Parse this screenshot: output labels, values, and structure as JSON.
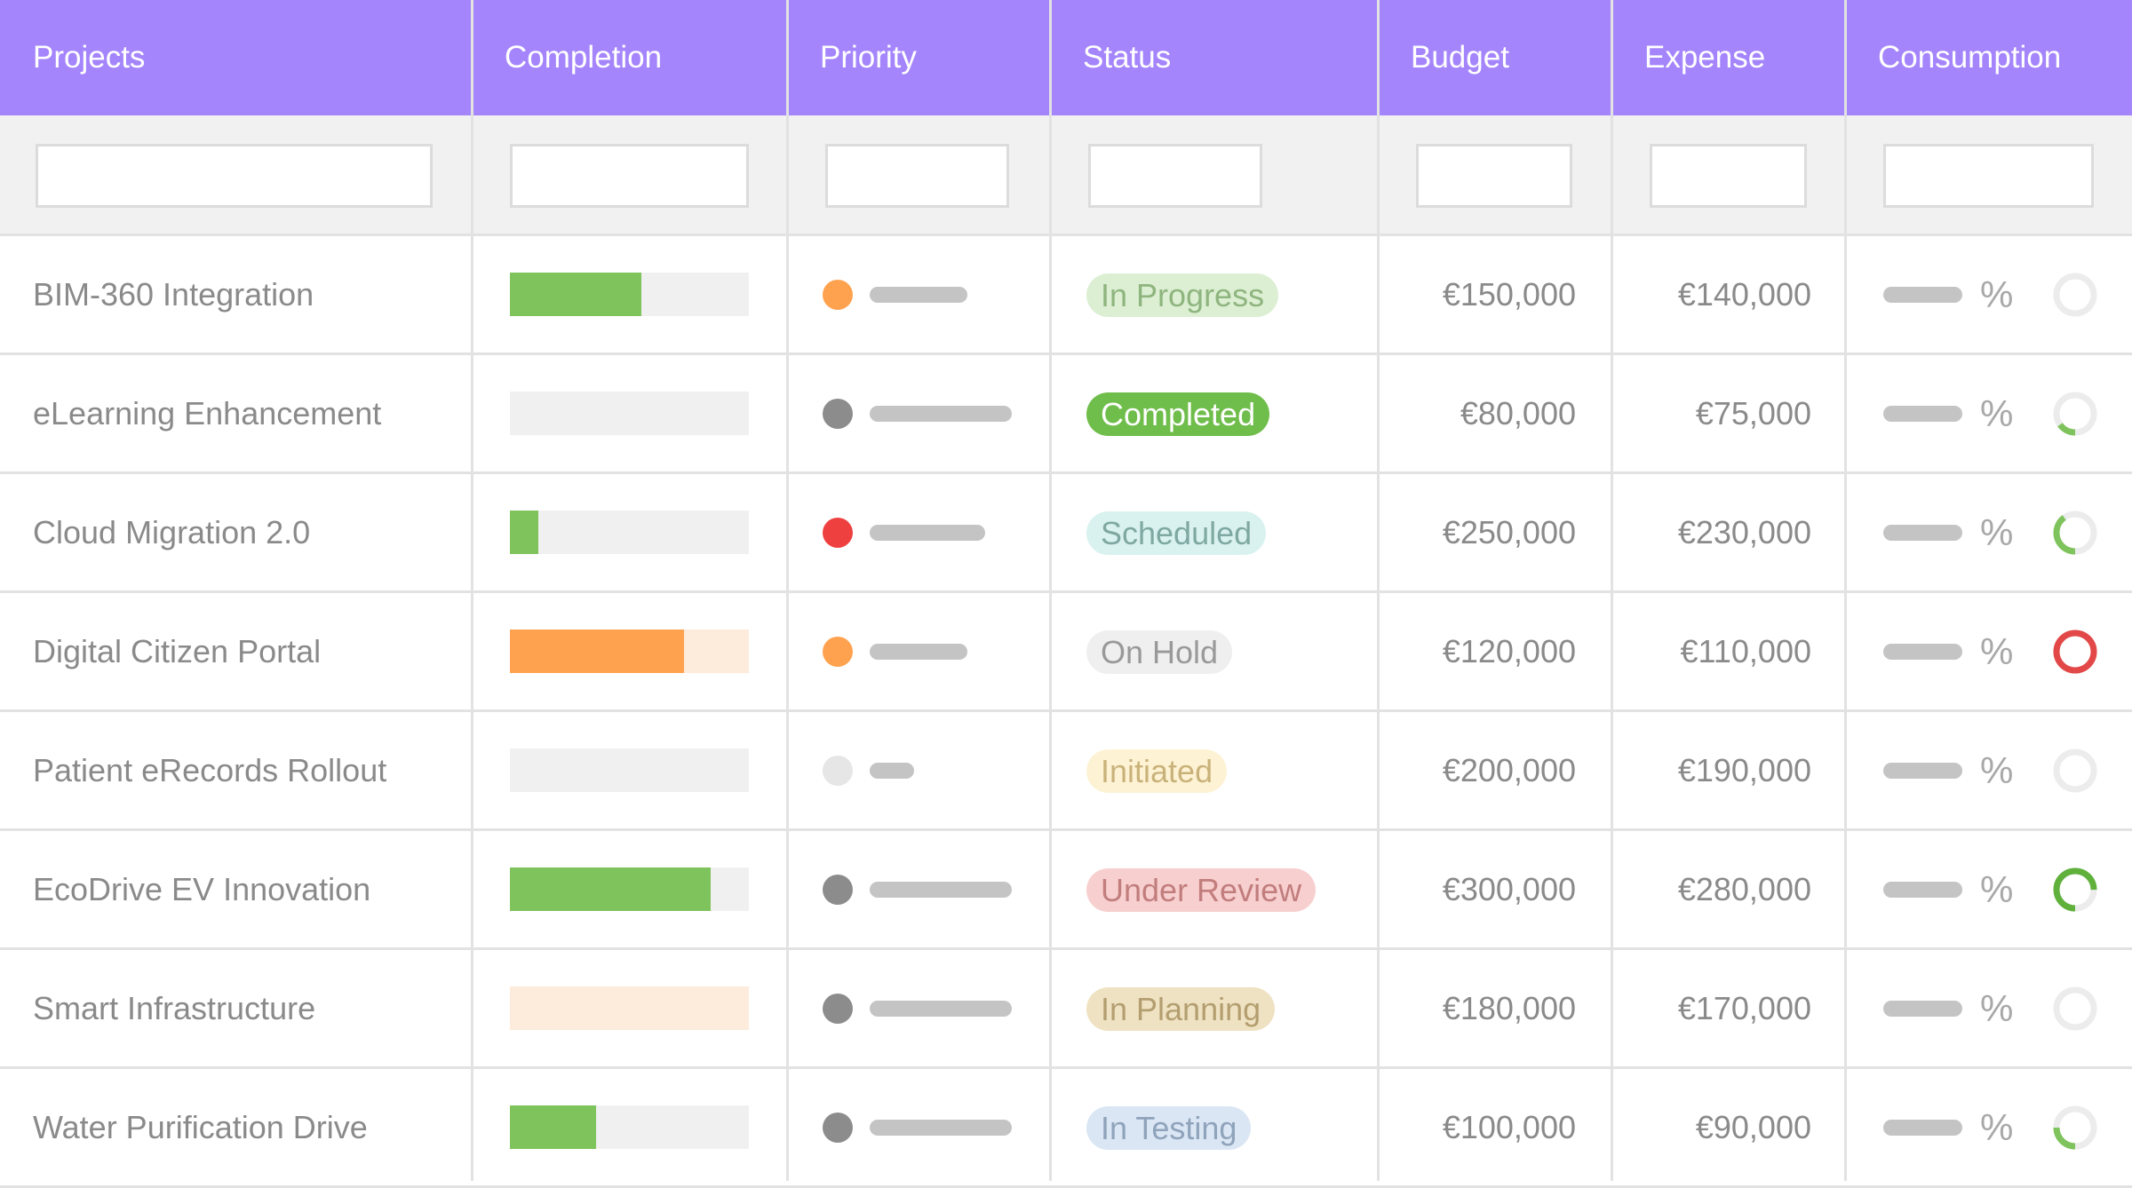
{
  "header": {
    "columns": [
      "Projects",
      "Completion",
      "Priority",
      "Status",
      "Budget",
      "Expense",
      "Consumption"
    ]
  },
  "table": {
    "rows": [
      {
        "project": "BIM-360 Integration",
        "completion": 55,
        "completion_color": "#7fc35d",
        "completion_track": "#f0f0f0",
        "priority_color": "#ffa24f",
        "status": "In Progress",
        "status_bg": "#dcefd3",
        "status_fg": "#8fb57f",
        "budget": "€150,000",
        "expense": "€140,000",
        "consumption_label": "%",
        "consumption": 0,
        "consumption_color": "#7fc35d"
      },
      {
        "project": "eLearning Enhancement",
        "completion": 0,
        "completion_color": "#7fc35d",
        "completion_track": "#f0f0f0",
        "priority_color": "#8c8c8c",
        "status": "Completed",
        "status_bg": "#6fbd4a",
        "status_fg": "#ffffff",
        "budget": "€80,000",
        "expense": "€75,000",
        "consumption_label": "%",
        "consumption": 15,
        "consumption_color": "#7fc35d"
      },
      {
        "project": "Cloud Migration 2.0",
        "completion": 12,
        "completion_color": "#7fc35d",
        "completion_track": "#f0f0f0",
        "priority_color": "#ef4040",
        "status": "Scheduled",
        "status_bg": "#d9f2ef",
        "status_fg": "#7fa8a2",
        "budget": "€250,000",
        "expense": "€230,000",
        "consumption_label": "%",
        "consumption": 40,
        "consumption_color": "#7fc35d"
      },
      {
        "project": "Digital Citizen Portal",
        "completion": 73,
        "completion_color": "#ffa24f",
        "completion_track": "#fdebdc",
        "priority_color": "#ffa24f",
        "status": "On Hold",
        "status_bg": "#efefef",
        "status_fg": "#999999",
        "budget": "€120,000",
        "expense": "€110,000",
        "consumption_label": "%",
        "consumption": 100,
        "consumption_color": "#e34848"
      },
      {
        "project": "Patient eRecords Rollout",
        "completion": 0,
        "completion_color": "#7fc35d",
        "completion_track": "#f0f0f0",
        "priority_color": "#e6e6e6",
        "status": "Initiated",
        "status_bg": "#fdf3d4",
        "status_fg": "#c9b27a",
        "budget": "€200,000",
        "expense": "€190,000",
        "consumption_label": "%",
        "consumption": 0,
        "consumption_color": "#7fc35d"
      },
      {
        "project": "EcoDrive EV Innovation",
        "completion": 84,
        "completion_color": "#7fc35d",
        "completion_track": "#f0f0f0",
        "priority_color": "#8c8c8c",
        "status": "Under Review",
        "status_bg": "#f7cfcf",
        "status_fg": "#c27d7d",
        "budget": "€300,000",
        "expense": "€280,000",
        "consumption_label": "%",
        "consumption": 75,
        "consumption_color": "#5fb13c"
      },
      {
        "project": "Smart Infrastructure",
        "completion": 0,
        "completion_color": "#ffa24f",
        "completion_track": "#fdebdc",
        "priority_color": "#8c8c8c",
        "status": "In Planning",
        "status_bg": "#efe2c2",
        "status_fg": "#b39e70",
        "budget": "€180,000",
        "expense": "€170,000",
        "consumption_label": "%",
        "consumption": 0,
        "consumption_color": "#7fc35d"
      },
      {
        "project": "Water Purification Drive",
        "completion": 36,
        "completion_color": "#7fc35d",
        "completion_track": "#f0f0f0",
        "priority_color": "#8c8c8c",
        "status": "In Testing",
        "status_bg": "#dae6f4",
        "status_fg": "#8fa3bb",
        "budget": "€100,000",
        "expense": "€90,000",
        "consumption_label": "%",
        "consumption": 25,
        "consumption_color": "#7fc35d"
      }
    ]
  }
}
